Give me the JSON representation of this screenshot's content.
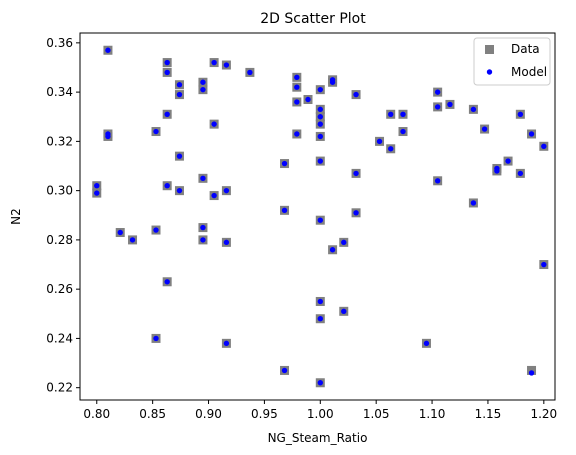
{
  "chart_data": {
    "type": "scatter",
    "title": "2D Scatter Plot",
    "xlabel": "NG_Steam_Ratio",
    "ylabel": "N2",
    "xlim": [
      0.785,
      1.21
    ],
    "ylim": [
      0.215,
      0.364
    ],
    "x_ticks": [
      "0.80",
      "0.85",
      "0.90",
      "0.95",
      "1.00",
      "1.05",
      "1.10",
      "1.15",
      "1.20"
    ],
    "y_ticks": [
      "0.22",
      "0.24",
      "0.26",
      "0.28",
      "0.30",
      "0.32",
      "0.34",
      "0.36"
    ],
    "grid": false,
    "legend_position": "top-right",
    "series": [
      {
        "name": "Data",
        "marker": "square",
        "color": "#808080",
        "points": [
          [
            0.8,
            0.302
          ],
          [
            0.8,
            0.299
          ],
          [
            0.81,
            0.357
          ],
          [
            0.81,
            0.323
          ],
          [
            0.81,
            0.322
          ],
          [
            0.821,
            0.283
          ],
          [
            0.832,
            0.28
          ],
          [
            0.853,
            0.324
          ],
          [
            0.853,
            0.284
          ],
          [
            0.853,
            0.24
          ],
          [
            0.863,
            0.352
          ],
          [
            0.863,
            0.348
          ],
          [
            0.863,
            0.331
          ],
          [
            0.863,
            0.302
          ],
          [
            0.863,
            0.263
          ],
          [
            0.874,
            0.343
          ],
          [
            0.874,
            0.339
          ],
          [
            0.874,
            0.314
          ],
          [
            0.874,
            0.3
          ],
          [
            0.895,
            0.344
          ],
          [
            0.895,
            0.341
          ],
          [
            0.895,
            0.305
          ],
          [
            0.895,
            0.285
          ],
          [
            0.895,
            0.28
          ],
          [
            0.905,
            0.352
          ],
          [
            0.905,
            0.327
          ],
          [
            0.905,
            0.298
          ],
          [
            0.916,
            0.351
          ],
          [
            0.916,
            0.3
          ],
          [
            0.916,
            0.279
          ],
          [
            0.916,
            0.238
          ],
          [
            0.937,
            0.348
          ],
          [
            0.968,
            0.311
          ],
          [
            0.968,
            0.292
          ],
          [
            0.968,
            0.227
          ],
          [
            0.979,
            0.346
          ],
          [
            0.979,
            0.342
          ],
          [
            0.979,
            0.336
          ],
          [
            0.979,
            0.323
          ],
          [
            0.989,
            0.337
          ],
          [
            1.0,
            0.341
          ],
          [
            1.0,
            0.333
          ],
          [
            1.0,
            0.33
          ],
          [
            1.0,
            0.327
          ],
          [
            1.0,
            0.322
          ],
          [
            1.0,
            0.312
          ],
          [
            1.0,
            0.288
          ],
          [
            1.0,
            0.255
          ],
          [
            1.0,
            0.248
          ],
          [
            1.0,
            0.222
          ],
          [
            1.011,
            0.345
          ],
          [
            1.011,
            0.344
          ],
          [
            1.011,
            0.276
          ],
          [
            1.021,
            0.279
          ],
          [
            1.021,
            0.251
          ],
          [
            1.032,
            0.339
          ],
          [
            1.032,
            0.307
          ],
          [
            1.032,
            0.291
          ],
          [
            1.053,
            0.32
          ],
          [
            1.063,
            0.331
          ],
          [
            1.063,
            0.317
          ],
          [
            1.074,
            0.331
          ],
          [
            1.074,
            0.324
          ],
          [
            1.095,
            0.238
          ],
          [
            1.105,
            0.34
          ],
          [
            1.105,
            0.334
          ],
          [
            1.105,
            0.304
          ],
          [
            1.116,
            0.335
          ],
          [
            1.137,
            0.333
          ],
          [
            1.137,
            0.295
          ],
          [
            1.147,
            0.325
          ],
          [
            1.158,
            0.309
          ],
          [
            1.158,
            0.308
          ],
          [
            1.168,
            0.312
          ],
          [
            1.179,
            0.331
          ],
          [
            1.179,
            0.307
          ],
          [
            1.189,
            0.323
          ],
          [
            1.189,
            0.227
          ],
          [
            1.2,
            0.318
          ],
          [
            1.2,
            0.27
          ]
        ]
      },
      {
        "name": "Model",
        "marker": "circle",
        "color": "#0000ff",
        "points": [
          [
            0.8,
            0.302
          ],
          [
            0.8,
            0.299
          ],
          [
            0.81,
            0.357
          ],
          [
            0.81,
            0.323
          ],
          [
            0.81,
            0.322
          ],
          [
            0.821,
            0.283
          ],
          [
            0.832,
            0.28
          ],
          [
            0.853,
            0.324
          ],
          [
            0.853,
            0.284
          ],
          [
            0.853,
            0.24
          ],
          [
            0.863,
            0.352
          ],
          [
            0.863,
            0.348
          ],
          [
            0.863,
            0.331
          ],
          [
            0.863,
            0.302
          ],
          [
            0.863,
            0.263
          ],
          [
            0.874,
            0.343
          ],
          [
            0.874,
            0.339
          ],
          [
            0.874,
            0.314
          ],
          [
            0.874,
            0.3
          ],
          [
            0.895,
            0.344
          ],
          [
            0.895,
            0.341
          ],
          [
            0.895,
            0.305
          ],
          [
            0.895,
            0.285
          ],
          [
            0.895,
            0.28
          ],
          [
            0.905,
            0.352
          ],
          [
            0.905,
            0.327
          ],
          [
            0.905,
            0.298
          ],
          [
            0.916,
            0.351
          ],
          [
            0.916,
            0.3
          ],
          [
            0.916,
            0.279
          ],
          [
            0.916,
            0.238
          ],
          [
            0.937,
            0.348
          ],
          [
            0.968,
            0.311
          ],
          [
            0.968,
            0.292
          ],
          [
            0.968,
            0.227
          ],
          [
            0.979,
            0.346
          ],
          [
            0.979,
            0.342
          ],
          [
            0.979,
            0.336
          ],
          [
            0.979,
            0.323
          ],
          [
            0.989,
            0.337
          ],
          [
            1.0,
            0.341
          ],
          [
            1.0,
            0.333
          ],
          [
            1.0,
            0.33
          ],
          [
            1.0,
            0.327
          ],
          [
            1.0,
            0.322
          ],
          [
            1.0,
            0.312
          ],
          [
            1.0,
            0.288
          ],
          [
            1.0,
            0.255
          ],
          [
            1.0,
            0.248
          ],
          [
            1.0,
            0.222
          ],
          [
            1.011,
            0.345
          ],
          [
            1.011,
            0.344
          ],
          [
            1.011,
            0.276
          ],
          [
            1.021,
            0.279
          ],
          [
            1.021,
            0.251
          ],
          [
            1.032,
            0.339
          ],
          [
            1.032,
            0.307
          ],
          [
            1.032,
            0.291
          ],
          [
            1.053,
            0.32
          ],
          [
            1.063,
            0.331
          ],
          [
            1.063,
            0.317
          ],
          [
            1.074,
            0.331
          ],
          [
            1.074,
            0.324
          ],
          [
            1.095,
            0.238
          ],
          [
            1.105,
            0.34
          ],
          [
            1.105,
            0.334
          ],
          [
            1.105,
            0.304
          ],
          [
            1.116,
            0.335
          ],
          [
            1.137,
            0.333
          ],
          [
            1.137,
            0.295
          ],
          [
            1.147,
            0.325
          ],
          [
            1.158,
            0.309
          ],
          [
            1.158,
            0.308
          ],
          [
            1.168,
            0.312
          ],
          [
            1.179,
            0.331
          ],
          [
            1.179,
            0.307
          ],
          [
            1.189,
            0.323
          ],
          [
            1.189,
            0.226
          ],
          [
            1.2,
            0.318
          ],
          [
            1.2,
            0.27
          ]
        ]
      }
    ]
  }
}
